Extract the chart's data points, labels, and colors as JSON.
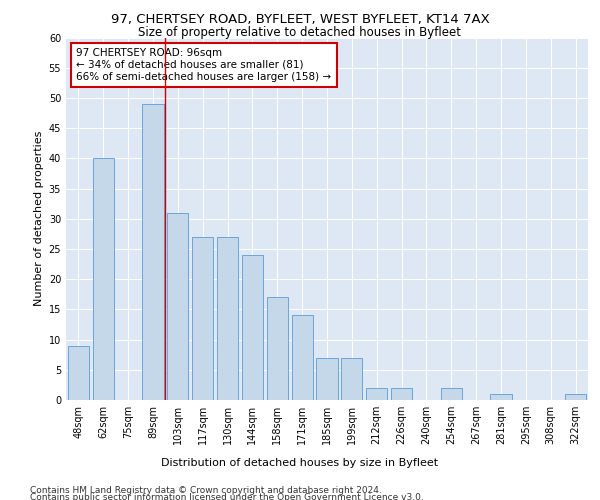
{
  "title1": "97, CHERTSEY ROAD, BYFLEET, WEST BYFLEET, KT14 7AX",
  "title2": "Size of property relative to detached houses in Byfleet",
  "xlabel": "Distribution of detached houses by size in Byfleet",
  "ylabel": "Number of detached properties",
  "categories": [
    "48sqm",
    "62sqm",
    "75sqm",
    "89sqm",
    "103sqm",
    "117sqm",
    "130sqm",
    "144sqm",
    "158sqm",
    "171sqm",
    "185sqm",
    "199sqm",
    "212sqm",
    "226sqm",
    "240sqm",
    "254sqm",
    "267sqm",
    "281sqm",
    "295sqm",
    "308sqm",
    "322sqm"
  ],
  "values": [
    9,
    40,
    0,
    49,
    31,
    27,
    27,
    24,
    17,
    14,
    7,
    7,
    2,
    2,
    0,
    2,
    0,
    1,
    0,
    0,
    1
  ],
  "bar_color": "#c5d8ea",
  "bar_edgecolor": "#5b9bd5",
  "vline_x": 3.5,
  "vline_color": "#cc0000",
  "annotation_text": "97 CHERTSEY ROAD: 96sqm\n← 34% of detached houses are smaller (81)\n66% of semi-detached houses are larger (158) →",
  "annotation_box_color": "#ffffff",
  "annotation_box_edgecolor": "#cc0000",
  "ylim": [
    0,
    60
  ],
  "yticks": [
    0,
    5,
    10,
    15,
    20,
    25,
    30,
    35,
    40,
    45,
    50,
    55,
    60
  ],
  "footer1": "Contains HM Land Registry data © Crown copyright and database right 2024.",
  "footer2": "Contains public sector information licensed under the Open Government Licence v3.0.",
  "plot_bg_color": "#dde8f4",
  "title1_fontsize": 9.5,
  "title2_fontsize": 8.5,
  "axis_label_fontsize": 8,
  "tick_fontsize": 7,
  "annot_fontsize": 7.5,
  "footer_fontsize": 6.5
}
